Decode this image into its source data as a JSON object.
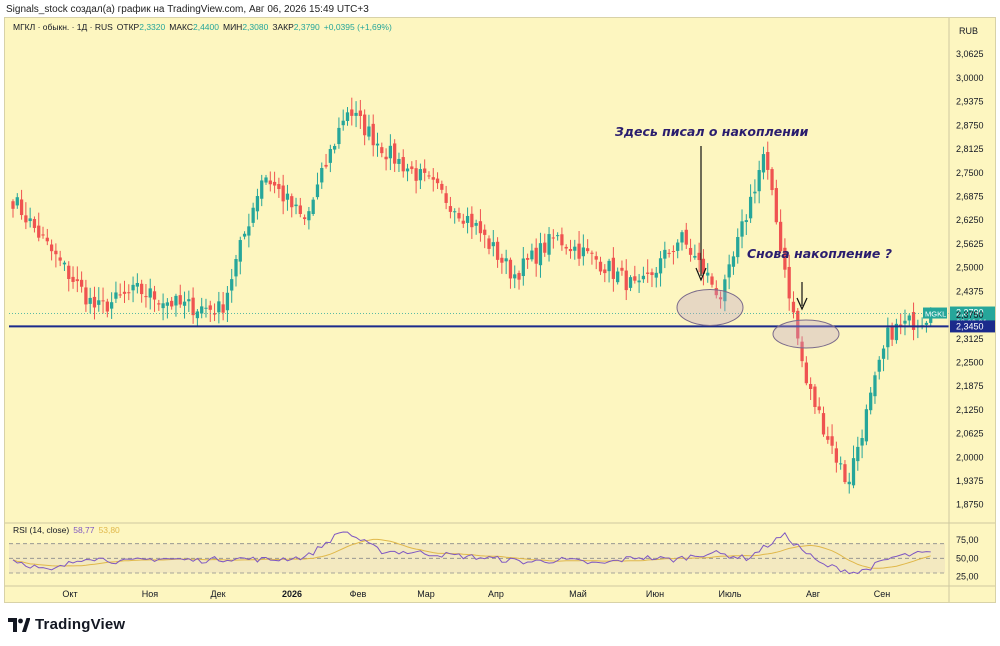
{
  "header": {
    "credit": "Signals_stock создал(а) график на TradingView.com, Авг 06, 2026 15:49 UTC+3"
  },
  "footer": {
    "brand": "TradingView"
  },
  "colors": {
    "background": "#fdf6c0",
    "up": "#26a69a",
    "down": "#ef5350",
    "support_line": "#1b2a8c",
    "rsi_line": "#7e57c2",
    "rsi_ma": "#e0b84a",
    "annotation": "#2a1d6e"
  },
  "chart_data": [
    {
      "type": "candlestick",
      "legend": {
        "symbol": "МГКЛ · обыкн. · 1Д · RUS",
        "open_label": "ОТКР",
        "open": "2,3320",
        "high_label": "МАКС",
        "high": "2,4400",
        "low_label": "МИН",
        "low": "2,3080",
        "close_label": "ЗАКР",
        "close": "2,3790",
        "change": "+0,0395 (+1,69%)"
      },
      "currency": "RUB",
      "ylim": [
        1.84,
        3.1
      ],
      "y_ticks": [
        "3,0625",
        "3,0000",
        "2,9375",
        "2,8750",
        "2,8125",
        "2,7500",
        "2,6875",
        "2,6250",
        "2,5625",
        "2,5000",
        "2,4375",
        "2,3750",
        "2,3125",
        "2,2500",
        "2,1875",
        "2,1250",
        "2,0625",
        "2,0000",
        "1,9375",
        "1,8750"
      ],
      "x_ticks": [
        "Окт",
        "Ноя",
        "Дек",
        "2026",
        "Фев",
        "Мар",
        "Апр",
        "Май",
        "Июн",
        "Июль",
        "Авг",
        "Сен"
      ],
      "price_label": {
        "ticker": "MGKL",
        "value": "2,3790",
        "timer": "08:00:01"
      },
      "support_level": {
        "value": 2.345,
        "label": "2,3450"
      },
      "key_points": [
        {
          "x": "Сен нач.",
          "y": 2.68
        },
        {
          "x": "Сен кон.",
          "y": 2.53
        },
        {
          "x": "Окт",
          "y": 2.39
        },
        {
          "x": "Ноя",
          "y": 2.44
        },
        {
          "x": "Дек",
          "y": 2.4
        },
        {
          "x": "Дек кон.",
          "y": 2.39
        },
        {
          "x": "2026 нач.",
          "y": 2.75
        },
        {
          "x": "Янв",
          "y": 2.62
        },
        {
          "x": "Янв кон.",
          "y": 2.92
        },
        {
          "x": "Фев",
          "y": 2.8
        },
        {
          "x": "Фев кон.",
          "y": 2.72
        },
        {
          "x": "Мар",
          "y": 2.62
        },
        {
          "x": "Апр",
          "y": 2.48
        },
        {
          "x": "Апр кон.",
          "y": 2.58
        },
        {
          "x": "Май",
          "y": 2.52
        },
        {
          "x": "Май кон.",
          "y": 2.44
        },
        {
          "x": "Июн",
          "y": 2.58
        },
        {
          "x": "Июн кон.",
          "y": 2.42
        },
        {
          "x": "Июль нач.",
          "y": 2.8
        },
        {
          "x": "Июль",
          "y": 2.2
        },
        {
          "x": "Июль кон.",
          "y": 1.93
        },
        {
          "x": "Авг нач.",
          "y": 2.33
        },
        {
          "x": "Авг",
          "y": 2.379
        }
      ],
      "annotations": [
        {
          "text": "Здесь писал о накоплении"
        },
        {
          "text": "Снова накопление ?"
        }
      ]
    },
    {
      "type": "line",
      "legend": {
        "name": "RSI (14, close)",
        "rsi": "58,77",
        "ma": "53,80"
      },
      "ylim": [
        15,
        90
      ],
      "y_ticks": [
        "75,00",
        "50,00",
        "25,00"
      ],
      "bands": [
        30,
        70
      ],
      "key_points": [
        48,
        32,
        52,
        45,
        50,
        47,
        50,
        48,
        52,
        88,
        60,
        58,
        54,
        50,
        45,
        48,
        42,
        52,
        48,
        58,
        50,
        82,
        42,
        30,
        52,
        58
      ]
    }
  ]
}
